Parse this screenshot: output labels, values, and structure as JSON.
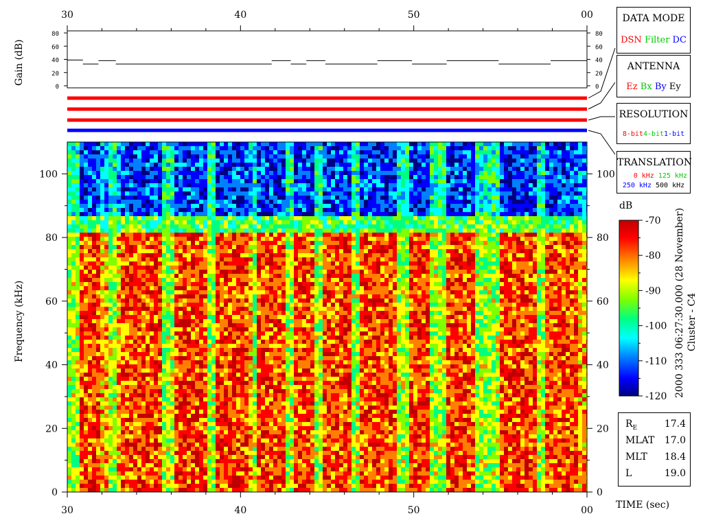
{
  "chart_data": {
    "type": "heatmap",
    "xlabel": "TIME (sec)",
    "ylabel": "Frequency (kHz)",
    "x_ticks": [
      "30",
      "40",
      "50",
      "00"
    ],
    "xlim": [
      30,
      60
    ],
    "ylim": [
      0,
      110
    ],
    "y_ticks": [
      0,
      20,
      40,
      60,
      80,
      100
    ],
    "colorbar": {
      "label": "dB",
      "range": [
        -120,
        -70
      ],
      "ticks": [
        "-70",
        "-80",
        "-90",
        "-100",
        "-110",
        "-120"
      ],
      "colors": [
        "#000080",
        "#0000ff",
        "#0080ff",
        "#00ffff",
        "#00ff80",
        "#80ff00",
        "#ffff00",
        "#ff8000",
        "#ff0000",
        "#c00000"
      ]
    },
    "noise_floor_khz": 85,
    "quiet_intervals_sec": [
      [
        30.6,
        32.0
      ],
      [
        33.0,
        35.5
      ],
      [
        36.0,
        38.0
      ],
      [
        38.5,
        40.5
      ],
      [
        41.0,
        42.5
      ],
      [
        43.0,
        44.3
      ],
      [
        44.8,
        46.5
      ],
      [
        47.0,
        49.0
      ],
      [
        49.8,
        51.0
      ],
      [
        51.8,
        53.5
      ],
      [
        55.0,
        57.0
      ],
      [
        57.5,
        59.5
      ]
    ],
    "bright_bands_sec": [
      [
        30.0,
        30.6
      ],
      [
        32.3,
        32.9
      ],
      [
        35.5,
        36.2
      ],
      [
        38.0,
        38.6
      ],
      [
        40.6,
        41.0
      ],
      [
        42.7,
        43.1
      ],
      [
        44.3,
        44.8
      ],
      [
        46.5,
        47.0
      ],
      [
        49.0,
        49.8
      ],
      [
        51.0,
        51.8
      ],
      [
        53.5,
        55.0
      ],
      [
        57.0,
        57.5
      ]
    ],
    "gain_panel": {
      "ylabel": "Gain (dB)",
      "y_ticks": [
        0,
        20,
        40,
        60,
        80
      ],
      "ylim": [
        0,
        80
      ],
      "segments": [
        {
          "t0": 30.0,
          "t1": 30.9,
          "gain": 39
        },
        {
          "t0": 30.9,
          "t1": 31.8,
          "gain": 33
        },
        {
          "t0": 31.8,
          "t1": 32.8,
          "gain": 38
        },
        {
          "t0": 32.8,
          "t1": 41.8,
          "gain": 33
        },
        {
          "t0": 41.8,
          "t1": 42.9,
          "gain": 38
        },
        {
          "t0": 42.9,
          "t1": 43.8,
          "gain": 33
        },
        {
          "t0": 43.8,
          "t1": 44.9,
          "gain": 38
        },
        {
          "t0": 44.9,
          "t1": 47.9,
          "gain": 33
        },
        {
          "t0": 47.9,
          "t1": 49.9,
          "gain": 38
        },
        {
          "t0": 49.9,
          "t1": 51.9,
          "gain": 33
        },
        {
          "t0": 51.9,
          "t1": 54.9,
          "gain": 38
        },
        {
          "t0": 54.9,
          "t1": 57.9,
          "gain": 33
        },
        {
          "t0": 57.9,
          "t1": 60.0,
          "gain": 38
        }
      ]
    },
    "status_bars": [
      {
        "name": "DATA MODE",
        "color": "#ff0000"
      },
      {
        "name": "ANTENNA",
        "color": "#ff0000"
      },
      {
        "name": "RESOLUTION",
        "color": "#ff0000"
      },
      {
        "name": "TRANSLATION",
        "color": "#0000ff"
      }
    ]
  },
  "legend_boxes": {
    "data_mode": {
      "title": "DATA MODE",
      "items": [
        {
          "label": "DSN",
          "color": "#ff0000"
        },
        {
          "label": "Filter",
          "color": "#00cc00"
        },
        {
          "label": "DC",
          "color": "#0000ff"
        }
      ]
    },
    "antenna": {
      "title": "ANTENNA",
      "items": [
        {
          "label": "Ez",
          "color": "#ff0000"
        },
        {
          "label": "Bx",
          "color": "#00cc00"
        },
        {
          "label": "By",
          "color": "#0000ff"
        },
        {
          "label": "Ey",
          "color": "#000000"
        }
      ]
    },
    "resolution": {
      "title": "RESOLUTION",
      "items": [
        {
          "label": "8-bit",
          "color": "#ff0000"
        },
        {
          "label": "4-bit",
          "color": "#00cc00"
        },
        {
          "label": "1-bit",
          "color": "#0000ff"
        }
      ]
    },
    "translation": {
      "title": "TRANSLATION",
      "row1": [
        {
          "label": "0 kHz",
          "color": "#ff0000"
        },
        {
          "label": "125 kHz",
          "color": "#00cc00"
        }
      ],
      "row2": [
        {
          "label": "250 kHz",
          "color": "#0000ff"
        },
        {
          "label": "500 kHz",
          "color": "#000000"
        }
      ]
    }
  },
  "timestamp": "2000 333 06:27:30.000 (28 November)",
  "spacecraft": "Cluster - C4",
  "position": {
    "rows": [
      {
        "label": "R",
        "sub": "E",
        "value": "17.4"
      },
      {
        "label": "MLAT",
        "sub": "",
        "value": "17.0"
      },
      {
        "label": "MLT",
        "sub": "",
        "value": "18.4"
      },
      {
        "label": "L",
        "sub": "",
        "value": "19.0"
      }
    ]
  }
}
